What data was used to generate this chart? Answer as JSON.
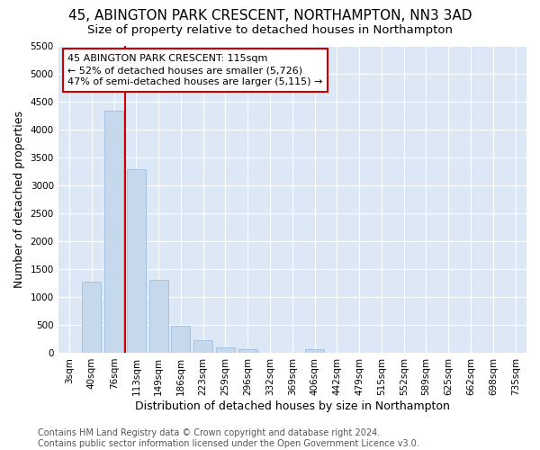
{
  "title": "45, ABINGTON PARK CRESCENT, NORTHAMPTON, NN3 3AD",
  "subtitle": "Size of property relative to detached houses in Northampton",
  "xlabel": "Distribution of detached houses by size in Northampton",
  "ylabel": "Number of detached properties",
  "categories": [
    "3sqm",
    "40sqm",
    "76sqm",
    "113sqm",
    "149sqm",
    "186sqm",
    "223sqm",
    "259sqm",
    "296sqm",
    "332sqm",
    "369sqm",
    "406sqm",
    "442sqm",
    "479sqm",
    "515sqm",
    "552sqm",
    "589sqm",
    "625sqm",
    "662sqm",
    "698sqm",
    "735sqm"
  ],
  "values": [
    0,
    1280,
    4350,
    3300,
    1300,
    480,
    230,
    90,
    60,
    0,
    0,
    60,
    0,
    0,
    0,
    0,
    0,
    0,
    0,
    0,
    0
  ],
  "bar_color": "#c5d8ec",
  "bar_edge_color": "#a0bee0",
  "vline_color": "#cc0000",
  "ylim": [
    0,
    5500
  ],
  "yticks": [
    0,
    500,
    1000,
    1500,
    2000,
    2500,
    3000,
    3500,
    4000,
    4500,
    5000,
    5500
  ],
  "annotation_text": "45 ABINGTON PARK CRESCENT: 115sqm\n← 52% of detached houses are smaller (5,726)\n47% of semi-detached houses are larger (5,115) →",
  "annotation_box_color": "#ffffff",
  "annotation_box_edge": "#cc0000",
  "fig_bg_color": "#ffffff",
  "plot_bg_color": "#dce8f5",
  "grid_color": "#ffffff",
  "footer_text": "Contains HM Land Registry data © Crown copyright and database right 2024.\nContains public sector information licensed under the Open Government Licence v3.0.",
  "title_fontsize": 11,
  "subtitle_fontsize": 9.5,
  "axis_label_fontsize": 9,
  "tick_fontsize": 7.5,
  "annotation_fontsize": 8,
  "footer_fontsize": 7
}
